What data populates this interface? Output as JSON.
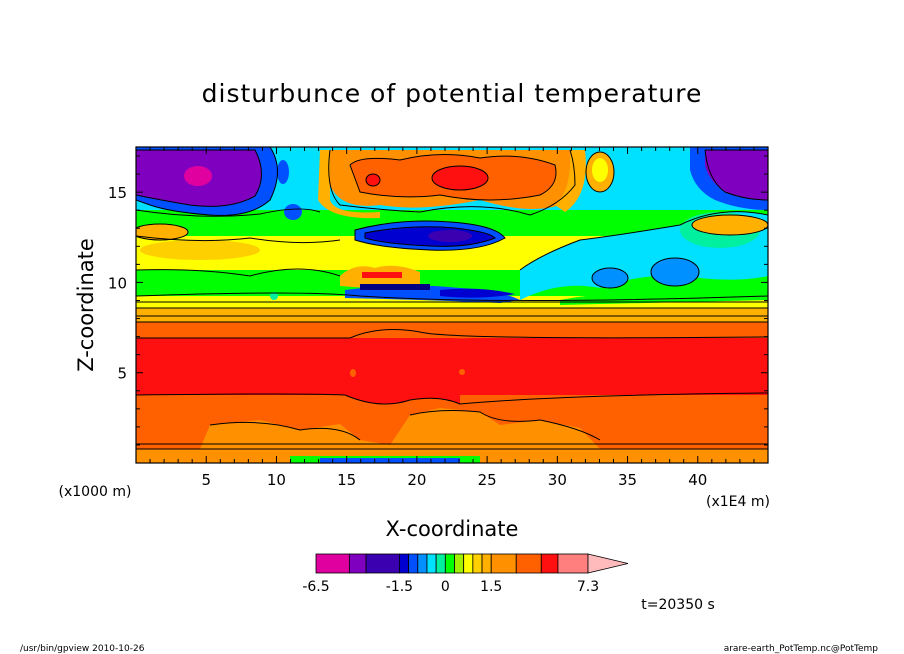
{
  "chart_data": {
    "type": "heatmap",
    "title": "disturbunce of potential temperature",
    "xlabel": "X-coordinate",
    "ylabel": "Z-coordinate",
    "x_unit": "(x1E4 m)",
    "y_unit": "(x1000 m)",
    "xlim": [
      0,
      45
    ],
    "ylim": [
      0,
      17.5
    ],
    "x_ticks": [
      "5",
      "10",
      "15",
      "20",
      "25",
      "30",
      "35",
      "40"
    ],
    "y_ticks": [
      "5",
      "10",
      "15"
    ],
    "colorbar": {
      "tick_labels": [
        "-6.5",
        "-1.5",
        "0",
        "1.5",
        "7.3"
      ],
      "levels": [
        -6.5,
        -4.5,
        -3.5,
        -1.5,
        -1.2,
        -0.9,
        -0.6,
        -0.3,
        0,
        0.3,
        0.6,
        0.9,
        1.2,
        1.5,
        3.0,
        4.5,
        5.5,
        7.3
      ],
      "colors": [
        "#e0009f",
        "#8000c0",
        "#3b00b0",
        "#0000d0",
        "#0050ff",
        "#0090ff",
        "#00e0ff",
        "#00f0a0",
        "#00ff00",
        "#a0f000",
        "#ffff00",
        "#ffd000",
        "#ffb000",
        "#ff9000",
        "#ff6000",
        "#ff1010",
        "#ff7f7f",
        "#ffbbbb"
      ],
      "extend": "max"
    },
    "layers": [
      {
        "z": [
          0,
          0.5
        ],
        "value": "3 to 4.5"
      },
      {
        "z": [
          0.5,
          4
        ],
        "value": "1.5 to 3"
      },
      {
        "z": [
          4,
          7
        ],
        "value": "3 to 4.5"
      },
      {
        "z": [
          7,
          8.5
        ],
        "value": "0 to 1.5"
      },
      {
        "z": [
          8.5,
          12
        ],
        "value": "-0.9 to 0.9"
      },
      {
        "z": [
          12,
          13.5
        ],
        "value": "-3.5 to -1.5 (center x 15-25)"
      },
      {
        "z": [
          13.5,
          17.5
        ],
        "value": "1.5 to 3 (center x 15-30), -6.5 to -3.5 (left and right)"
      }
    ],
    "time_label": "t=20350 s"
  },
  "footer": {
    "left": "/usr/bin/gpview   2010-10-26",
    "right": "arare-earth_PotTemp.nc@PotTemp"
  }
}
